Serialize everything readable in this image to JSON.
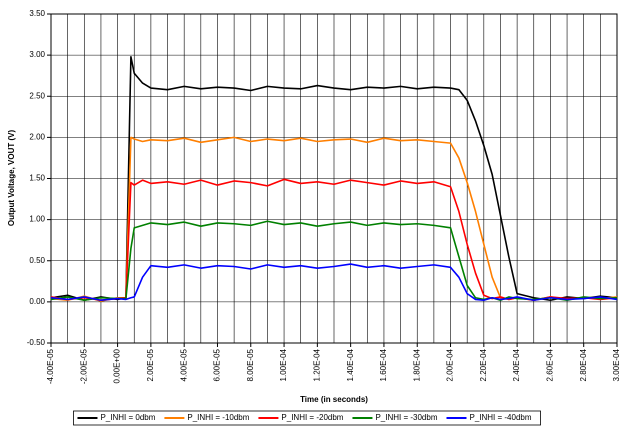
{
  "chart_data": {
    "type": "line",
    "xlabel": "Time (in seconds)",
    "ylabel": "Output Voltage, VOUT (V)",
    "x": [
      -4e-05,
      -3e-05,
      -2e-05,
      -1e-05,
      0,
      5e-06,
      8e-06,
      1e-05,
      1.5e-05,
      2e-05,
      3e-05,
      4e-05,
      5e-05,
      6e-05,
      7e-05,
      8e-05,
      9e-05,
      0.0001,
      0.00011,
      0.00012,
      0.00013,
      0.00014,
      0.00015,
      0.00016,
      0.00017,
      0.00018,
      0.00019,
      0.0002,
      0.000205,
      0.00021,
      0.000215,
      0.00022,
      0.000225,
      0.00023,
      0.000235,
      0.00024,
      0.00025,
      0.00026,
      0.00027,
      0.00028,
      0.00029,
      0.0003
    ],
    "series": [
      {
        "name": "P_INHI = 0dbm",
        "color": "#000000",
        "values": [
          0.05,
          0.08,
          0.02,
          0.06,
          0.03,
          0.05,
          2.98,
          2.78,
          2.66,
          2.6,
          2.58,
          2.62,
          2.59,
          2.61,
          2.6,
          2.57,
          2.62,
          2.6,
          2.59,
          2.63,
          2.6,
          2.58,
          2.61,
          2.6,
          2.62,
          2.59,
          2.61,
          2.6,
          2.58,
          2.45,
          2.2,
          1.9,
          1.55,
          1.05,
          0.55,
          0.1,
          0.05,
          0.02,
          0.06,
          0.04,
          0.07,
          0.05
        ]
      },
      {
        "name": "P_INHI = -10dbm",
        "color": "#ff7f00",
        "values": [
          0.04,
          0.02,
          0.07,
          0.01,
          0.05,
          0.05,
          2.0,
          1.98,
          1.95,
          1.97,
          1.96,
          1.99,
          1.94,
          1.97,
          2.0,
          1.95,
          1.98,
          1.96,
          1.99,
          1.95,
          1.97,
          1.98,
          1.94,
          1.99,
          1.96,
          1.97,
          1.95,
          1.93,
          1.75,
          1.45,
          1.1,
          0.7,
          0.3,
          0.05,
          0.03,
          0.05,
          0.02,
          0.06,
          0.03,
          0.05,
          0.04,
          0.06
        ]
      },
      {
        "name": "P_INHI = -20dbm",
        "color": "#ff0000",
        "values": [
          0.06,
          0.03,
          0.05,
          0.02,
          0.04,
          0.05,
          1.45,
          1.42,
          1.48,
          1.44,
          1.46,
          1.43,
          1.48,
          1.42,
          1.47,
          1.45,
          1.41,
          1.49,
          1.44,
          1.46,
          1.43,
          1.48,
          1.45,
          1.42,
          1.47,
          1.44,
          1.46,
          1.4,
          1.1,
          0.7,
          0.35,
          0.08,
          0.04,
          0.06,
          0.03,
          0.05,
          0.02,
          0.06,
          0.04,
          0.05,
          0.03,
          0.05
        ]
      },
      {
        "name": "P_INHI = -30dbm",
        "color": "#008000",
        "values": [
          0.03,
          0.06,
          0.02,
          0.05,
          0.04,
          0.04,
          0.65,
          0.9,
          0.93,
          0.96,
          0.94,
          0.97,
          0.92,
          0.96,
          0.95,
          0.93,
          0.98,
          0.94,
          0.96,
          0.92,
          0.95,
          0.97,
          0.93,
          0.96,
          0.94,
          0.95,
          0.93,
          0.9,
          0.55,
          0.2,
          0.05,
          0.03,
          0.05,
          0.02,
          0.06,
          0.04,
          0.03,
          0.05,
          0.02,
          0.06,
          0.04,
          0.05
        ]
      },
      {
        "name": "P_INHI = -40dbm",
        "color": "#0000ff",
        "values": [
          0.05,
          0.03,
          0.06,
          0.02,
          0.04,
          0.03,
          0.05,
          0.06,
          0.3,
          0.44,
          0.42,
          0.45,
          0.41,
          0.44,
          0.43,
          0.4,
          0.45,
          0.42,
          0.44,
          0.41,
          0.43,
          0.46,
          0.42,
          0.44,
          0.41,
          0.43,
          0.45,
          0.42,
          0.3,
          0.1,
          0.03,
          0.02,
          0.05,
          0.03,
          0.04,
          0.06,
          0.02,
          0.05,
          0.03,
          0.04,
          0.06,
          0.03
        ]
      }
    ],
    "xlim": [
      -4e-05,
      0.0003
    ],
    "xticks": [
      {
        "value": -4e-05,
        "label": "-4.00E-05"
      },
      {
        "value": -2e-05,
        "label": "-2.00E-05"
      },
      {
        "value": 0,
        "label": "0.00E+00"
      },
      {
        "value": 2e-05,
        "label": "2.00E-05"
      },
      {
        "value": 4e-05,
        "label": "4.00E-05"
      },
      {
        "value": 6e-05,
        "label": "6.00E-05"
      },
      {
        "value": 8e-05,
        "label": "8.00E-05"
      },
      {
        "value": 0.0001,
        "label": "1.00E-04"
      },
      {
        "value": 0.00012,
        "label": "1.20E-04"
      },
      {
        "value": 0.00014,
        "label": "1.40E-04"
      },
      {
        "value": 0.00016,
        "label": "1.60E-04"
      },
      {
        "value": 0.00018,
        "label": "1.80E-04"
      },
      {
        "value": 0.0002,
        "label": "2.00E-04"
      },
      {
        "value": 0.00022,
        "label": "2.20E-04"
      },
      {
        "value": 0.00024,
        "label": "2.40E-04"
      },
      {
        "value": 0.00026,
        "label": "2.60E-04"
      },
      {
        "value": 0.00028,
        "label": "2.80E-04"
      },
      {
        "value": 0.0003,
        "label": "3.00E-04"
      }
    ],
    "ylim": [
      -0.5,
      3.5
    ],
    "yticks": [
      {
        "value": -0.5,
        "label": "-0.50"
      },
      {
        "value": 0,
        "label": "0.00"
      },
      {
        "value": 0.5,
        "label": "0.50"
      },
      {
        "value": 1,
        "label": "1.00"
      },
      {
        "value": 1.5,
        "label": "1.50"
      },
      {
        "value": 2,
        "label": "2.00"
      },
      {
        "value": 2.5,
        "label": "2.50"
      },
      {
        "value": 3,
        "label": "3.00"
      },
      {
        "value": 3.5,
        "label": "3.50"
      }
    ],
    "grid": true,
    "x_minor_grid": true,
    "legend": "bottom"
  }
}
